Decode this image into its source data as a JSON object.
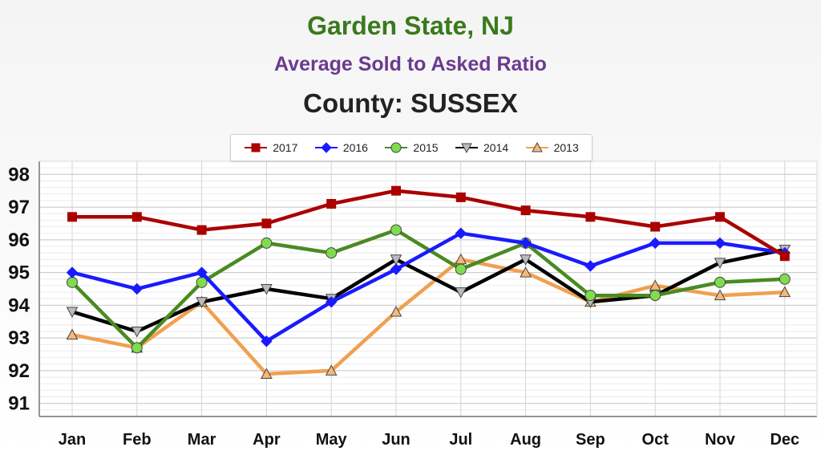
{
  "chart_data": {
    "type": "line",
    "title": "Garden State, NJ",
    "subtitle": "Average Sold to Asked Ratio",
    "subtitle2": "County: SUSSEX",
    "categories": [
      "Jan",
      "Feb",
      "Mar",
      "Apr",
      "May",
      "Jun",
      "Jul",
      "Aug",
      "Sep",
      "Oct",
      "Nov",
      "Dec"
    ],
    "ylim": [
      90.6,
      98.4
    ],
    "yticks": [
      91,
      92,
      93,
      94,
      95,
      96,
      97,
      98
    ],
    "grid": true,
    "legend_position": "top-center",
    "series": [
      {
        "name": "2017",
        "color": "#aa0000",
        "marker": "square",
        "values": [
          96.7,
          96.7,
          96.3,
          96.5,
          97.1,
          97.5,
          97.3,
          96.9,
          96.7,
          96.4,
          96.7,
          95.5
        ]
      },
      {
        "name": "2016",
        "color": "#1a1aff",
        "marker": "diamond",
        "values": [
          95.0,
          94.5,
          95.0,
          92.9,
          94.1,
          95.1,
          96.2,
          95.9,
          95.2,
          95.9,
          95.9,
          95.6
        ]
      },
      {
        "name": "2015",
        "color": "#4a8a22",
        "marker": "circle",
        "values": [
          94.7,
          92.7,
          94.7,
          95.9,
          95.6,
          96.3,
          95.1,
          95.9,
          94.3,
          94.3,
          94.7,
          94.8
        ]
      },
      {
        "name": "2014",
        "color": "#000000",
        "marker": "triangle-down",
        "values": [
          93.8,
          93.2,
          94.1,
          94.5,
          94.2,
          95.4,
          94.4,
          95.4,
          94.1,
          94.3,
          95.3,
          95.7
        ]
      },
      {
        "name": "2013",
        "color": "#f0a050",
        "marker": "triangle-up",
        "values": [
          93.1,
          92.7,
          94.1,
          91.9,
          92.0,
          93.8,
          95.4,
          95.0,
          94.1,
          94.6,
          94.3,
          94.4
        ]
      }
    ]
  },
  "colors": {
    "title": "#3a7a1c",
    "subtitle": "#6a3a90",
    "subtitle2": "#222222"
  }
}
